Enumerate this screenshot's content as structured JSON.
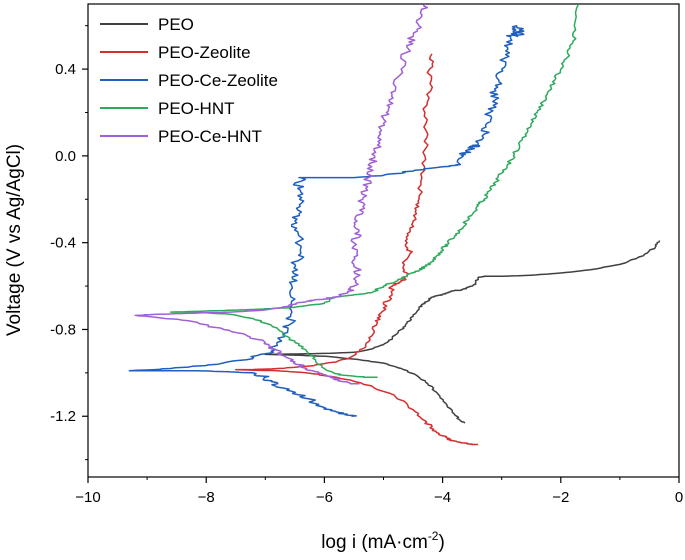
{
  "chart_data": {
    "type": "line",
    "title": "",
    "xlabel_main": "log i (mA·cm",
    "xlabel_sup": "-2",
    "xlabel_end": ")",
    "ylabel": "Voltage (V vs Ag/AgCl)",
    "xlim": [
      -10,
      0
    ],
    "ylim": [
      -1.48,
      0.7
    ],
    "xticks": [
      -10,
      -8,
      -6,
      -4,
      -2,
      0
    ],
    "xtick_labels": [
      "−10",
      "−8",
      "−6",
      "−4",
      "−2",
      "0"
    ],
    "yticks": [
      -1.2,
      -0.8,
      -0.4,
      0.0,
      0.4
    ],
    "ytick_labels": [
      "-1.2",
      "-0.8",
      "-0.4",
      "0.0",
      "0.4"
    ],
    "legend_position": "top-left",
    "series": [
      {
        "name": "PEO",
        "color": "#404040",
        "x": [
          -3.62,
          -3.7,
          -3.8,
          -3.95,
          -4.1,
          -4.25,
          -4.45,
          -4.7,
          -5.0,
          -5.4,
          -5.9,
          -6.5,
          -7.0,
          -6.5,
          -5.9,
          -5.5,
          -5.2,
          -5.0,
          -4.85,
          -4.7,
          -4.6,
          -4.5,
          -4.4,
          -4.3,
          -4.2,
          -4.1,
          -4.0,
          -3.9,
          -3.8,
          -3.7,
          -3.6,
          -3.5,
          -3.45,
          -3.4,
          -3.3,
          -3.0,
          -2.5,
          -2.0,
          -1.5,
          -1.0,
          -0.6,
          -0.4,
          -0.33
        ],
        "y": [
          -1.23,
          -1.22,
          -1.19,
          -1.14,
          -1.09,
          -1.05,
          -1.01,
          -0.98,
          -0.955,
          -0.94,
          -0.925,
          -0.918,
          -0.915,
          -0.913,
          -0.91,
          -0.905,
          -0.89,
          -0.87,
          -0.84,
          -0.8,
          -0.77,
          -0.74,
          -0.7,
          -0.68,
          -0.655,
          -0.645,
          -0.64,
          -0.63,
          -0.62,
          -0.62,
          -0.61,
          -0.6,
          -0.59,
          -0.56,
          -0.555,
          -0.555,
          -0.55,
          -0.54,
          -0.525,
          -0.5,
          -0.46,
          -0.42,
          -0.39
        ]
      },
      {
        "name": "PEO-Zeolite",
        "color": "#d32f2f",
        "x": [
          -3.4,
          -3.5,
          -3.6,
          -3.7,
          -3.85,
          -4.0,
          -4.15,
          -4.3,
          -4.5,
          -4.8,
          -5.2,
          -5.8,
          -6.3,
          -6.8,
          -7.2,
          -7.5,
          -7.2,
          -6.8,
          -6.3,
          -5.8,
          -5.5,
          -5.3,
          -5.2,
          -5.12,
          -5.05,
          -5.0,
          -4.9,
          -4.85,
          -4.7,
          -4.6,
          -4.65,
          -4.55,
          -4.6,
          -4.55,
          -4.5,
          -4.45,
          -4.4,
          -4.35,
          -4.3,
          -4.25,
          -4.3,
          -4.2,
          -4.22,
          -4.18
        ],
        "y": [
          -1.33,
          -1.33,
          -1.325,
          -1.32,
          -1.31,
          -1.29,
          -1.26,
          -1.22,
          -1.17,
          -1.11,
          -1.06,
          -1.02,
          -1.0,
          -0.99,
          -0.988,
          -0.985,
          -0.985,
          -0.98,
          -0.97,
          -0.95,
          -0.92,
          -0.88,
          -0.83,
          -0.78,
          -0.74,
          -0.7,
          -0.65,
          -0.6,
          -0.58,
          -0.55,
          -0.5,
          -0.45,
          -0.4,
          -0.35,
          -0.3,
          -0.25,
          -0.2,
          -0.1,
          0.0,
          0.1,
          0.2,
          0.3,
          0.4,
          0.47
        ]
      },
      {
        "name": "PEO-Ce-Zeolite",
        "color": "#1f5fbf",
        "x": [
          -5.5,
          -5.6,
          -5.8,
          -6.0,
          -6.2,
          -6.45,
          -6.7,
          -6.9,
          -7.0,
          -7.2,
          -7.6,
          -8.2,
          -8.8,
          -9.3,
          -8.6,
          -7.8,
          -7.2,
          -6.9,
          -6.8,
          -6.7,
          -6.6,
          -6.55,
          -6.5,
          -6.55,
          -6.45,
          -6.5,
          -6.4,
          -6.45,
          -6.5,
          -6.45,
          -6.42,
          -6.45,
          -6.4,
          -6.3,
          -6.0,
          -5.5,
          -5.0,
          -4.5,
          -4.0,
          -3.7,
          -3.65,
          -3.6,
          -3.5,
          -3.4,
          -3.3,
          -3.25,
          -3.2,
          -3.15,
          -3.1,
          -3.05,
          -3.0,
          -2.95,
          -2.9,
          -2.85,
          -2.8,
          -2.75,
          -2.7,
          -2.72
        ],
        "y": [
          -1.2,
          -1.195,
          -1.18,
          -1.16,
          -1.13,
          -1.1,
          -1.07,
          -1.04,
          -1.02,
          -1.0,
          -0.995,
          -0.99,
          -0.99,
          -0.99,
          -0.98,
          -0.96,
          -0.93,
          -0.9,
          -0.86,
          -0.82,
          -0.78,
          -0.72,
          -0.66,
          -0.6,
          -0.55,
          -0.5,
          -0.45,
          -0.35,
          -0.3,
          -0.25,
          -0.2,
          -0.15,
          -0.1,
          -0.1,
          -0.1,
          -0.1,
          -0.09,
          -0.07,
          -0.05,
          -0.04,
          0.0,
          0.02,
          0.04,
          0.05,
          0.1,
          0.15,
          0.2,
          0.25,
          0.3,
          0.35,
          0.4,
          0.45,
          0.5,
          0.55,
          0.57,
          0.6,
          0.58,
          0.55
        ]
      },
      {
        "name": "PEO-HNT",
        "color": "#2eaa5c",
        "x": [
          -5.1,
          -5.3,
          -5.5,
          -5.7,
          -5.85,
          -6.0,
          -6.15,
          -6.3,
          -6.5,
          -6.7,
          -6.9,
          -7.2,
          -7.6,
          -8.2,
          -8.6,
          -8.0,
          -7.4,
          -7.0,
          -6.6,
          -6.3,
          -6.0,
          -5.8,
          -5.5,
          -5.2,
          -5.0,
          -4.8,
          -4.6,
          -4.4,
          -4.3,
          -4.2,
          -4.1,
          -4.0,
          -3.9,
          -3.8,
          -3.7,
          -3.6,
          -3.5,
          -3.4,
          -3.3,
          -3.2,
          -3.1,
          -3.0,
          -2.9,
          -2.8,
          -2.7,
          -2.6,
          -2.5,
          -2.4,
          -2.3,
          -2.2,
          -2.1,
          -2.0,
          -1.9,
          -1.8,
          -1.75,
          -1.7
        ],
        "y": [
          -1.02,
          -1.02,
          -1.015,
          -1.01,
          -1.0,
          -0.98,
          -0.94,
          -0.9,
          -0.86,
          -0.82,
          -0.78,
          -0.75,
          -0.73,
          -0.72,
          -0.72,
          -0.715,
          -0.71,
          -0.705,
          -0.7,
          -0.69,
          -0.68,
          -0.65,
          -0.64,
          -0.63,
          -0.6,
          -0.58,
          -0.55,
          -0.53,
          -0.51,
          -0.49,
          -0.46,
          -0.43,
          -0.4,
          -0.37,
          -0.34,
          -0.3,
          -0.27,
          -0.23,
          -0.2,
          -0.16,
          -0.12,
          -0.08,
          -0.04,
          0.0,
          0.05,
          0.1,
          0.15,
          0.2,
          0.25,
          0.3,
          0.35,
          0.4,
          0.45,
          0.52,
          0.58,
          0.7
        ]
      },
      {
        "name": "PEO-Ce-HNT",
        "color": "#a060d8",
        "x": [
          -5.45,
          -5.55,
          -5.7,
          -5.9,
          -6.1,
          -6.3,
          -6.5,
          -6.7,
          -6.85,
          -7.0,
          -7.3,
          -7.7,
          -8.3,
          -9.0,
          -9.2,
          -8.8,
          -8.2,
          -7.6,
          -7.0,
          -6.6,
          -6.3,
          -6.0,
          -5.8,
          -5.6,
          -5.5,
          -5.4,
          -5.5,
          -5.45,
          -5.5,
          -5.42,
          -5.45,
          -5.4,
          -5.35,
          -5.3,
          -5.25,
          -5.2,
          -5.15,
          -5.1,
          -5.05,
          -5.0,
          -4.95,
          -4.9,
          -4.8,
          -4.7,
          -4.6,
          -4.5,
          -4.4,
          -4.35,
          -4.3
        ],
        "y": [
          -1.05,
          -1.05,
          -1.04,
          -1.02,
          -1.0,
          -0.98,
          -0.95,
          -0.92,
          -0.89,
          -0.86,
          -0.83,
          -0.8,
          -0.76,
          -0.74,
          -0.735,
          -0.73,
          -0.725,
          -0.72,
          -0.71,
          -0.69,
          -0.67,
          -0.66,
          -0.65,
          -0.63,
          -0.6,
          -0.55,
          -0.5,
          -0.45,
          -0.4,
          -0.35,
          -0.3,
          -0.25,
          -0.2,
          -0.15,
          -0.1,
          -0.05,
          0.0,
          0.05,
          0.1,
          0.15,
          0.2,
          0.25,
          0.3,
          0.4,
          0.5,
          0.55,
          0.6,
          0.65,
          0.7
        ]
      }
    ]
  }
}
